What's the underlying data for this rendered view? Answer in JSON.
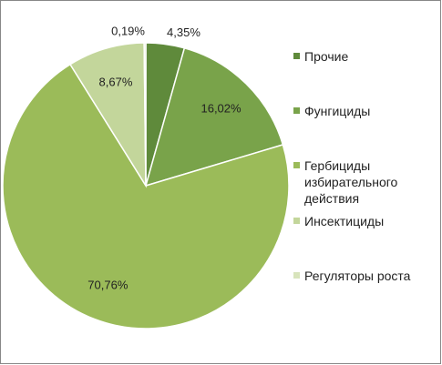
{
  "chart_data": {
    "type": "pie",
    "categories": [
      "Прочие",
      "Фунгициды",
      "Гербициды избирательного действия",
      "Инсектициды",
      "Регуляторы роста"
    ],
    "values": [
      4.35,
      16.02,
      70.76,
      8.67,
      0.19
    ],
    "value_labels": [
      "4,35%",
      "16,02%",
      "70,76%",
      "8,67%",
      "0,19%"
    ],
    "colors": [
      "#5f8a3b",
      "#79a34a",
      "#9bbb59",
      "#c3d69b",
      "#d8e4bc"
    ]
  }
}
